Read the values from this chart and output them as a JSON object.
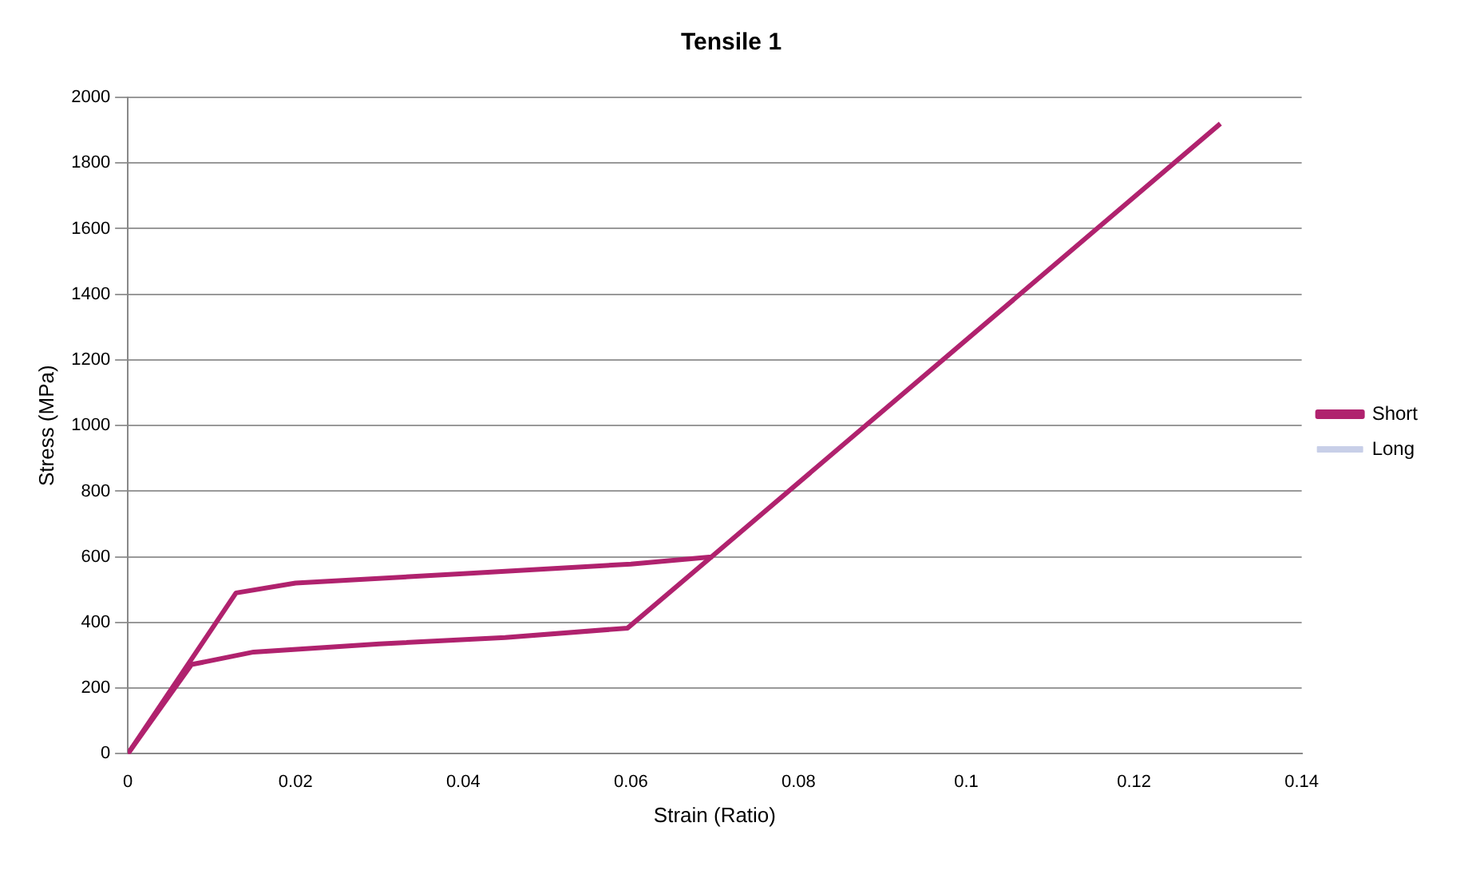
{
  "chart_data": {
    "type": "line",
    "title": "Tensile 1",
    "xlabel": "Strain (Ratio)",
    "ylabel": "Stress (MPa)",
    "xlim": [
      0,
      0.14
    ],
    "xticks": [
      0,
      0.02,
      0.04,
      0.06,
      0.08,
      0.1,
      0.12,
      0.14
    ],
    "ylim": [
      0,
      2000
    ],
    "yticks": [
      0,
      200,
      400,
      600,
      800,
      1000,
      1200,
      1400,
      1600,
      1800,
      2000
    ],
    "grid": "y",
    "legend": "right",
    "marker": "none",
    "line_style": "solid",
    "series": [
      {
        "name": "Short",
        "color": "#b0226e",
        "x": [
          0,
          0.0129,
          0.02,
          0.04,
          0.06,
          0.0696,
          0.1303
        ],
        "values": [
          0,
          490,
          520,
          549,
          578,
          600,
          1920
        ]
      },
      {
        "color": "#b0226e",
        "x": [
          0,
          0.0076,
          0.015,
          0.03,
          0.045,
          0.0596,
          0.0696
        ],
        "values": [
          0,
          272,
          310,
          335,
          354,
          383,
          600
        ]
      },
      {
        "name": "Long",
        "color": "#c8cfe8"
      }
    ]
  }
}
